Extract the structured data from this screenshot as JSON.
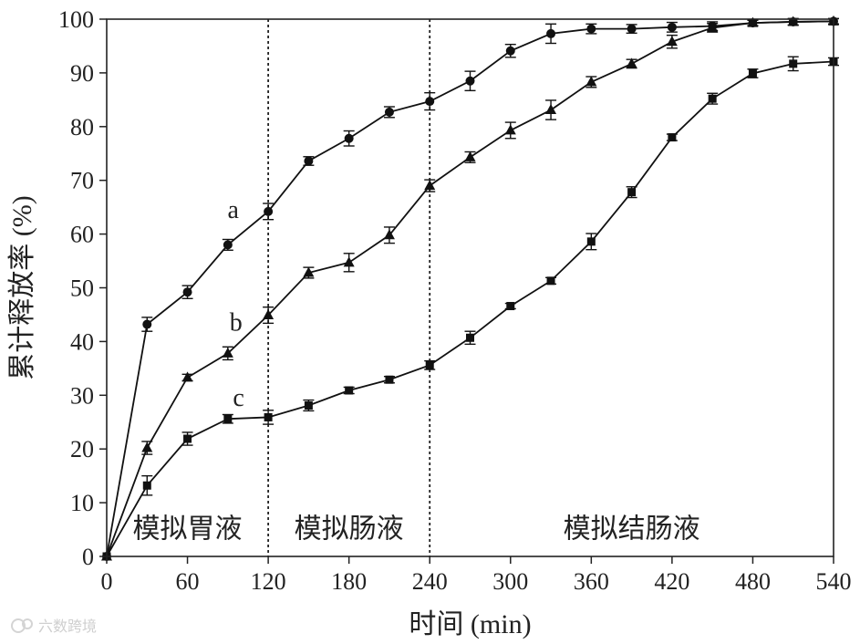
{
  "chart_data": {
    "type": "line",
    "xlabel": "时间 (min)",
    "ylabel": "累计释放率 (%)",
    "xlim": [
      0,
      540
    ],
    "ylim": [
      0,
      100
    ],
    "xticks": [
      0,
      60,
      120,
      180,
      240,
      300,
      360,
      420,
      480,
      540
    ],
    "yticks": [
      0,
      10,
      20,
      30,
      40,
      50,
      60,
      70,
      80,
      90,
      100
    ],
    "grid": false,
    "vlines": [
      120,
      240
    ],
    "phases": [
      {
        "label": "模拟胃液",
        "from": 0,
        "to": 120
      },
      {
        "label": "模拟肠液",
        "from": 120,
        "to": 240
      },
      {
        "label": "模拟结肠液",
        "from": 240,
        "to": 540
      }
    ],
    "series": [
      {
        "name": "a",
        "marker": "circle",
        "x": [
          0,
          30,
          60,
          90,
          120,
          150,
          180,
          210,
          240,
          270,
          300,
          330,
          360,
          390,
          420,
          450,
          480,
          510,
          540
        ],
        "y": [
          0,
          43.2,
          49.2,
          58.0,
          64.2,
          73.6,
          77.8,
          82.7,
          84.7,
          88.5,
          94.1,
          97.3,
          98.2,
          98.2,
          98.5,
          98.7,
          99.3,
          99.5,
          99.6
        ],
        "err": [
          0,
          1.3,
          1.2,
          1.0,
          1.5,
          0.8,
          1.4,
          1.0,
          1.6,
          1.8,
          1.2,
          1.8,
          0.9,
          0.8,
          0.9,
          0.8,
          0.5,
          0.6,
          0.5
        ]
      },
      {
        "name": "b",
        "marker": "triangle",
        "x": [
          0,
          30,
          60,
          90,
          120,
          150,
          180,
          210,
          240,
          270,
          300,
          330,
          360,
          390,
          420,
          450,
          480,
          510,
          540
        ],
        "y": [
          0,
          20.2,
          33.3,
          37.8,
          44.9,
          52.8,
          54.7,
          59.8,
          69.0,
          74.3,
          79.3,
          83.1,
          88.3,
          91.7,
          95.8,
          98.4,
          99.3,
          99.5,
          99.6
        ],
        "err": [
          0,
          1.2,
          0.6,
          1.2,
          1.5,
          1.0,
          1.7,
          1.5,
          1.1,
          1.0,
          1.5,
          1.8,
          1.0,
          0.8,
          1.2,
          0.8,
          0.5,
          0.6,
          0.5
        ]
      },
      {
        "name": "c",
        "marker": "square",
        "x": [
          0,
          30,
          60,
          90,
          120,
          150,
          180,
          210,
          240,
          270,
          300,
          330,
          360,
          390,
          420,
          450,
          480,
          510,
          540
        ],
        "y": [
          0,
          13.2,
          21.9,
          25.6,
          25.9,
          28.1,
          30.9,
          32.9,
          35.6,
          40.7,
          46.6,
          51.3,
          58.6,
          67.8,
          78.0,
          85.2,
          89.9,
          91.7,
          92.1
        ],
        "err": [
          0,
          1.8,
          1.2,
          0.8,
          1.3,
          1.0,
          0.6,
          0.6,
          0.8,
          1.2,
          0.5,
          0.6,
          1.5,
          1.0,
          0.6,
          1.0,
          0.8,
          1.3,
          0.7
        ]
      }
    ],
    "series_label_positions": [
      {
        "name": "a",
        "x": 94,
        "y": 63
      },
      {
        "name": "b",
        "x": 96,
        "y": 42
      },
      {
        "name": "c",
        "x": 98,
        "y": 28
      }
    ]
  },
  "watermark": "六数跨境"
}
